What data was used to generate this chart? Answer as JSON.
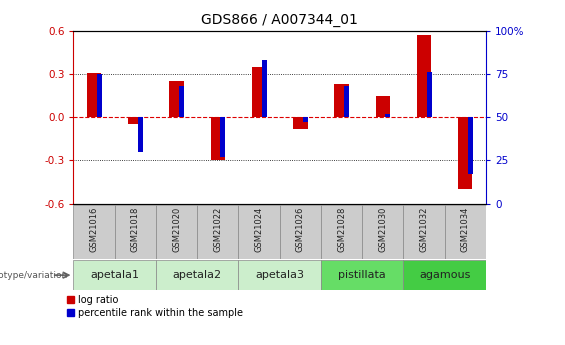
{
  "title": "GDS866 / A007344_01",
  "samples": [
    "GSM21016",
    "GSM21018",
    "GSM21020",
    "GSM21022",
    "GSM21024",
    "GSM21026",
    "GSM21028",
    "GSM21030",
    "GSM21032",
    "GSM21034"
  ],
  "log_ratios": [
    0.31,
    -0.05,
    0.25,
    -0.3,
    0.35,
    -0.08,
    0.23,
    0.15,
    0.57,
    -0.5
  ],
  "percentile_ranks": [
    75,
    30,
    68,
    27,
    83,
    47,
    68,
    52,
    76,
    17
  ],
  "ylim": [
    -0.6,
    0.6
  ],
  "yticks_left": [
    -0.6,
    -0.3,
    0.0,
    0.3,
    0.6
  ],
  "yticks_right": [
    0,
    25,
    50,
    75,
    100
  ],
  "hlines_dotted": [
    0.3,
    -0.3
  ],
  "bar_color_red": "#CC0000",
  "bar_color_blue": "#0000CC",
  "zero_line_color": "#DD0000",
  "groups": [
    {
      "name": "apetala1",
      "indices": [
        0,
        1
      ],
      "color": "#CCEECC"
    },
    {
      "name": "apetala2",
      "indices": [
        2,
        3
      ],
      "color": "#CCEECC"
    },
    {
      "name": "apetala3",
      "indices": [
        4,
        5
      ],
      "color": "#CCEECC"
    },
    {
      "name": "pistillata",
      "indices": [
        6,
        7
      ],
      "color": "#66DD66"
    },
    {
      "name": "agamous",
      "indices": [
        8,
        9
      ],
      "color": "#44CC44"
    }
  ],
  "sample_box_color": "#CCCCCC",
  "legend_label_red": "log ratio",
  "legend_label_blue": "percentile rank within the sample",
  "genotype_label": "genotype/variation",
  "red_bar_width": 0.35,
  "blue_bar_width": 0.12,
  "title_fontsize": 10,
  "tick_fontsize": 7.5,
  "sample_fontsize": 6,
  "group_fontsize": 8
}
